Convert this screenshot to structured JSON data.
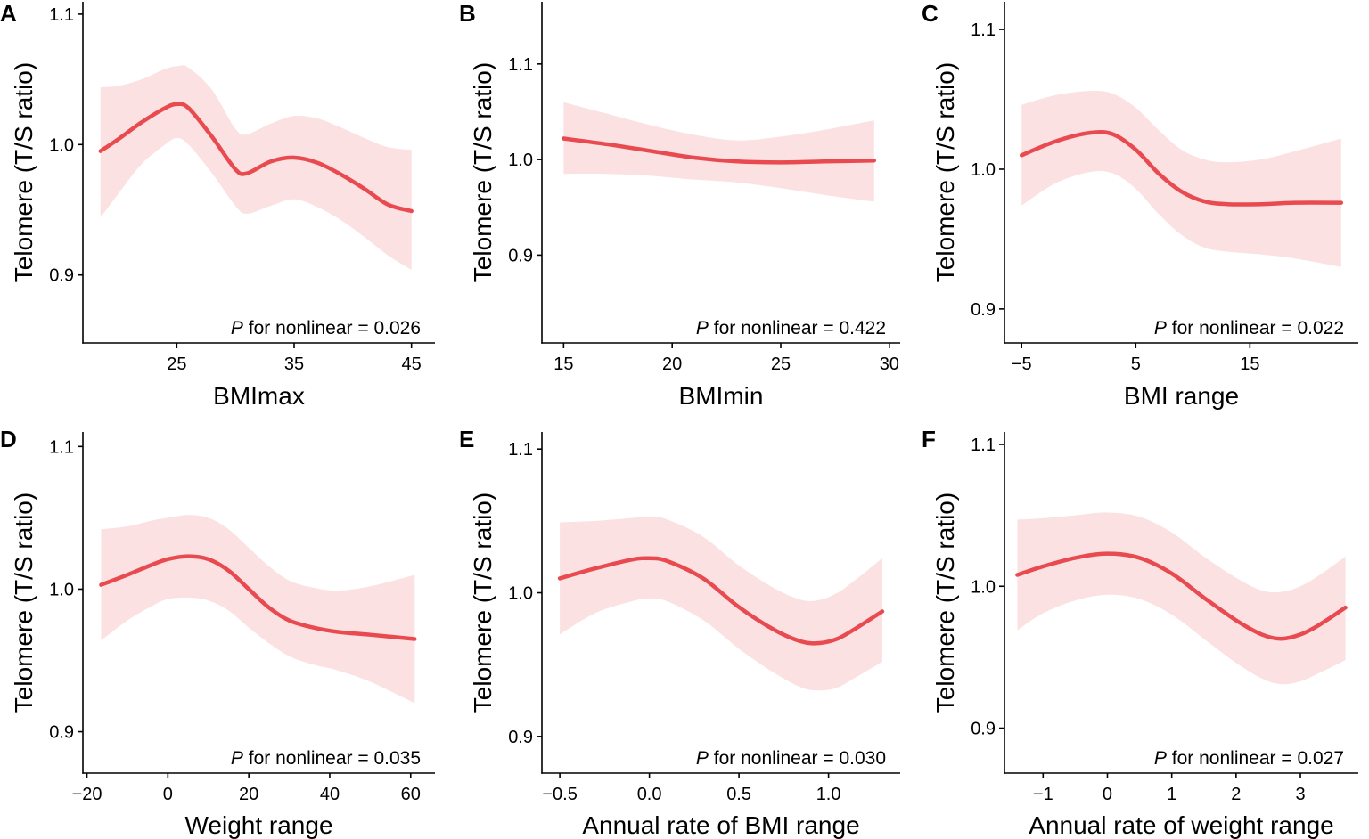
{
  "colors": {
    "line": "#e84a4f",
    "band": "#fce1e3",
    "axis": "#000000"
  },
  "chart_data": [
    {
      "type": "line",
      "panel": "A",
      "xlabel": "BMImax",
      "ylabel": "Telomere (T/S ratio)",
      "xlim": [
        17,
        47
      ],
      "ylim": [
        0.8479,
        1.1095
      ],
      "xticks": [
        25,
        35,
        45
      ],
      "xtick_labels": [
        "25",
        "35",
        "45"
      ],
      "yticks": [
        0.9,
        1.0,
        1.1
      ],
      "ytick_labels": [
        "0.9",
        "1.0",
        "1.1"
      ],
      "p_label_italic": "P",
      "p_label_rest": " for nonlinear = 0.026",
      "series": [
        {
          "name": "fit",
          "x": [
            18.5,
            20.0,
            22.0,
            24.0,
            25.0,
            26.0,
            28.0,
            30.0,
            31.0,
            33.0,
            35.0,
            37.0,
            39.0,
            41.0,
            43.0,
            45.0
          ],
          "y": [
            0.995,
            1.004,
            1.017,
            1.028,
            1.031,
            1.028,
            1.006,
            0.981,
            0.978,
            0.987,
            0.99,
            0.986,
            0.977,
            0.966,
            0.954,
            0.949
          ],
          "lower": [
            0.944,
            0.962,
            0.985,
            1.0,
            1.005,
            1.0,
            0.978,
            0.953,
            0.947,
            0.953,
            0.958,
            0.952,
            0.942,
            0.929,
            0.915,
            0.904
          ],
          "upper": [
            1.044,
            1.045,
            1.05,
            1.058,
            1.06,
            1.059,
            1.042,
            1.012,
            1.008,
            1.016,
            1.022,
            1.02,
            1.013,
            1.005,
            0.998,
            0.996
          ]
        }
      ]
    },
    {
      "type": "line",
      "panel": "B",
      "xlabel": "BMImin",
      "ylabel": "Telomere (T/S ratio)",
      "xlim": [
        14.0,
        30.5
      ],
      "ylim": [
        0.8081,
        1.1651
      ],
      "xticks": [
        15,
        20,
        25,
        30
      ],
      "xtick_labels": [
        "15",
        "20",
        "25",
        "30"
      ],
      "yticks": [
        0.9,
        1.0,
        1.1
      ],
      "ytick_labels": [
        "0.9",
        "1.0",
        "1.1"
      ],
      "p_label_italic": "P",
      "p_label_rest": " for nonlinear = 0.422",
      "series": [
        {
          "name": "fit",
          "x": [
            15.0,
            17.0,
            19.0,
            21.0,
            23.0,
            25.0,
            27.0,
            29.3
          ],
          "y": [
            1.022,
            1.016,
            1.009,
            1.002,
            0.998,
            0.997,
            0.998,
            0.999
          ],
          "lower": [
            0.985,
            0.985,
            0.983,
            0.979,
            0.976,
            0.97,
            0.963,
            0.956
          ],
          "upper": [
            1.06,
            1.048,
            1.036,
            1.026,
            1.02,
            1.024,
            1.031,
            1.041
          ]
        }
      ]
    },
    {
      "type": "line",
      "panel": "C",
      "xlabel": "BMI range",
      "ylabel": "Telomere (T/S ratio)",
      "xlim": [
        -6.5,
        24.5
      ],
      "ylim": [
        0.8757,
        1.1198
      ],
      "xticks": [
        -5,
        5,
        15
      ],
      "xtick_labels": [
        "−5",
        "5",
        "15"
      ],
      "yticks": [
        0.9,
        1.0,
        1.1
      ],
      "ytick_labels": [
        "0.9",
        "1.0",
        "1.1"
      ],
      "p_label_italic": "P",
      "p_label_rest": " for nonlinear = 0.022",
      "series": [
        {
          "name": "fit",
          "x": [
            -5.0,
            -2.0,
            1.0,
            3.0,
            5.0,
            7.0,
            9.0,
            11.0,
            13.0,
            16.0,
            19.0,
            23.0
          ],
          "y": [
            1.01,
            1.02,
            1.026,
            1.025,
            1.014,
            0.997,
            0.984,
            0.977,
            0.975,
            0.975,
            0.976,
            0.976
          ],
          "lower": [
            0.974,
            0.99,
            0.998,
            0.997,
            0.986,
            0.968,
            0.953,
            0.944,
            0.941,
            0.939,
            0.936,
            0.93
          ],
          "upper": [
            1.046,
            1.053,
            1.056,
            1.054,
            1.044,
            1.028,
            1.014,
            1.007,
            1.005,
            1.007,
            1.013,
            1.022
          ]
        }
      ]
    },
    {
      "type": "line",
      "panel": "D",
      "xlabel": "Weight range",
      "ylabel": "Telomere (T/S ratio)",
      "xlim": [
        -21,
        66
      ],
      "ylim": [
        0.871,
        1.1102
      ],
      "xticks": [
        -20,
        0,
        20,
        40,
        60
      ],
      "xtick_labels": [
        "−20",
        "0",
        "20",
        "40",
        "60"
      ],
      "yticks": [
        0.9,
        1.0,
        1.1
      ],
      "ytick_labels": [
        "0.9",
        "1.0",
        "1.1"
      ],
      "p_label_italic": "P",
      "p_label_rest": " for nonlinear = 0.035",
      "series": [
        {
          "name": "fit",
          "x": [
            -16.5,
            -10.0,
            -4.0,
            0.0,
            5.0,
            10.0,
            15.0,
            20.0,
            25.0,
            30.0,
            36.0,
            42.0,
            50.0,
            61.0
          ],
          "y": [
            1.003,
            1.01,
            1.017,
            1.021,
            1.023,
            1.021,
            1.013,
            1.0,
            0.987,
            0.978,
            0.973,
            0.97,
            0.968,
            0.965
          ],
          "lower": [
            0.964,
            0.978,
            0.988,
            0.993,
            0.994,
            0.992,
            0.985,
            0.973,
            0.962,
            0.953,
            0.947,
            0.943,
            0.935,
            0.92
          ],
          "upper": [
            1.042,
            1.044,
            1.048,
            1.05,
            1.052,
            1.05,
            1.042,
            1.029,
            1.016,
            1.006,
            1.001,
            0.999,
            1.002,
            1.01
          ]
        }
      ]
    },
    {
      "type": "line",
      "panel": "E",
      "xlabel": "Annual rate of BMI range",
      "ylabel": "Telomere (T/S ratio)",
      "xlim": [
        -0.6,
        1.4
      ],
      "ylim": [
        0.8745,
        1.1119
      ],
      "xticks": [
        -0.5,
        0.0,
        0.5,
        1.0
      ],
      "xtick_labels": [
        "−0.5",
        "0.0",
        "0.5",
        "1.0"
      ],
      "yticks": [
        0.9,
        1.0,
        1.1
      ],
      "ytick_labels": [
        "0.9",
        "1.0",
        "1.1"
      ],
      "p_label_italic": "P",
      "p_label_rest": " for nonlinear = 0.030",
      "series": [
        {
          "name": "fit",
          "x": [
            -0.5,
            -0.3,
            -0.1,
            0.0,
            0.1,
            0.3,
            0.5,
            0.7,
            0.85,
            0.95,
            1.05,
            1.15,
            1.3
          ],
          "y": [
            1.01,
            1.017,
            1.023,
            1.024,
            1.022,
            1.01,
            0.99,
            0.974,
            0.966,
            0.965,
            0.968,
            0.975,
            0.987
          ],
          "lower": [
            0.971,
            0.986,
            0.994,
            0.996,
            0.994,
            0.981,
            0.961,
            0.944,
            0.934,
            0.932,
            0.934,
            0.941,
            0.952
          ],
          "upper": [
            1.049,
            1.05,
            1.052,
            1.053,
            1.051,
            1.039,
            1.019,
            1.003,
            0.995,
            0.995,
            1.0,
            1.009,
            1.024
          ]
        }
      ]
    },
    {
      "type": "line",
      "panel": "F",
      "xlabel": "Annual rate of weight range",
      "ylabel": "Telomere (T/S ratio)",
      "xlim": [
        -1.6,
        3.9
      ],
      "ylim": [
        0.8683,
        1.1088
      ],
      "xticks": [
        -1,
        0,
        1,
        2,
        3
      ],
      "xtick_labels": [
        "−1",
        "0",
        "1",
        "2",
        "3"
      ],
      "yticks": [
        0.9,
        1.0,
        1.1
      ],
      "ytick_labels": [
        "0.9",
        "1.0",
        "1.1"
      ],
      "p_label_italic": "P",
      "p_label_rest": " for nonlinear = 0.027",
      "series": [
        {
          "name": "fit",
          "x": [
            -1.4,
            -1.0,
            -0.5,
            0.0,
            0.5,
            1.0,
            1.5,
            2.0,
            2.4,
            2.7,
            3.0,
            3.3,
            3.7
          ],
          "y": [
            1.008,
            1.014,
            1.02,
            1.023,
            1.02,
            1.009,
            0.992,
            0.976,
            0.966,
            0.963,
            0.966,
            0.973,
            0.985
          ],
          "lower": [
            0.969,
            0.981,
            0.99,
            0.994,
            0.991,
            0.98,
            0.963,
            0.946,
            0.935,
            0.931,
            0.933,
            0.939,
            0.948
          ],
          "upper": [
            1.047,
            1.048,
            1.05,
            1.052,
            1.049,
            1.038,
            1.021,
            1.006,
            0.997,
            0.996,
            1.0,
            1.008,
            1.021
          ]
        }
      ]
    }
  ]
}
